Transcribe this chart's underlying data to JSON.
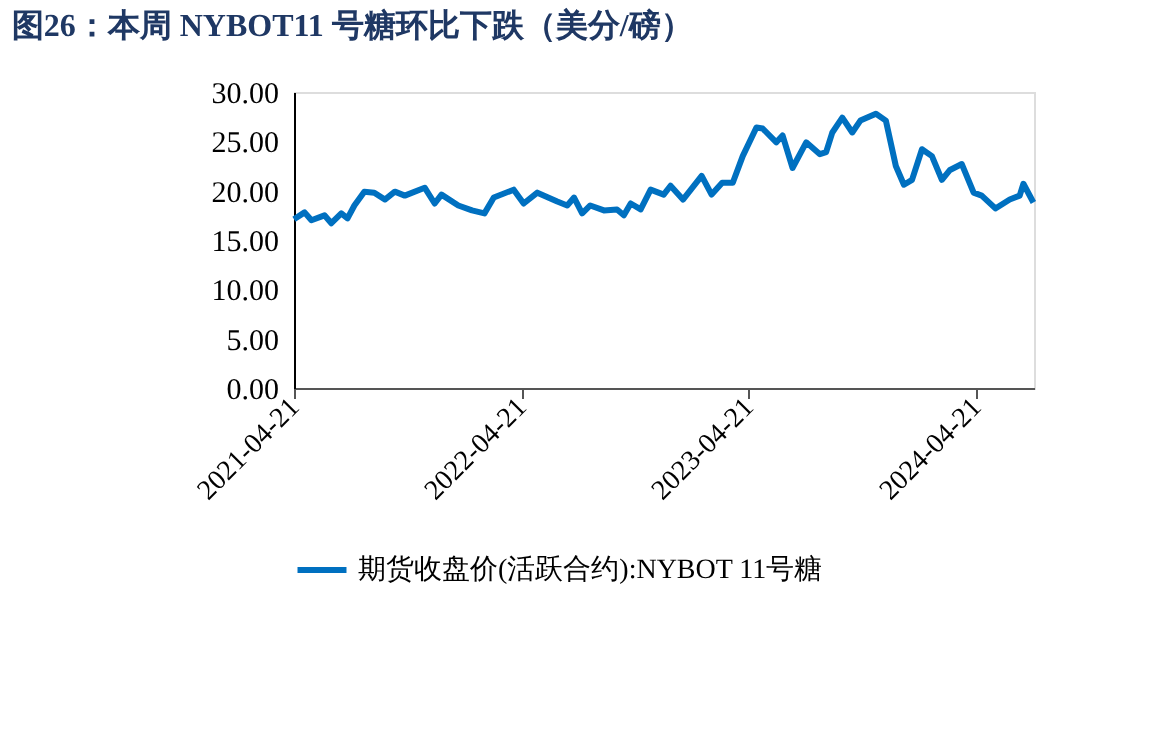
{
  "chart_data": {
    "type": "line",
    "title": "图26：本周 NYBOT11 号糖环比下跌（美分/磅）",
    "x": [
      "2021-04-21",
      "2021-05-08",
      "2021-05-19",
      "2021-06-09",
      "2021-06-20",
      "2021-07-06",
      "2021-07-16",
      "2021-07-27",
      "2021-08-12",
      "2021-08-28",
      "2021-09-14",
      "2021-09-30",
      "2021-10-16",
      "2021-11-17",
      "2021-12-03",
      "2021-12-14",
      "2022-01-10",
      "2022-02-01",
      "2022-02-21",
      "2022-03-08",
      "2022-04-09",
      "2022-04-25",
      "2022-05-17",
      "2022-06-18",
      "2022-07-04",
      "2022-07-15",
      "2022-07-28",
      "2022-08-10",
      "2022-09-01",
      "2022-09-22",
      "2022-10-03",
      "2022-10-14",
      "2022-10-30",
      "2022-11-15",
      "2022-12-06",
      "2022-12-17",
      "2023-01-06",
      "2023-02-05",
      "2023-02-21",
      "2023-03-10",
      "2023-03-27",
      "2023-04-12",
      "2023-05-04",
      "2023-05-14",
      "2023-06-05",
      "2023-06-15",
      "2023-07-01",
      "2023-07-23",
      "2023-08-14",
      "2023-08-24",
      "2023-09-03",
      "2023-09-19",
      "2023-10-05",
      "2023-10-18",
      "2023-11-12",
      "2023-11-28",
      "2023-12-14",
      "2023-12-27",
      "2024-01-09",
      "2024-01-25",
      "2024-02-10",
      "2024-02-26",
      "2024-03-10",
      "2024-03-29",
      "2024-04-17",
      "2024-04-30",
      "2024-05-22",
      "2024-06-14",
      "2024-06-30",
      "2024-07-06",
      "2024-07-22"
    ],
    "series": [
      {
        "name": "期货收盘价(活跃合约):NYBOT 11号糖",
        "color": "#0070c0",
        "values": [
          17.1,
          17.8,
          17.0,
          17.5,
          16.7,
          17.7,
          17.2,
          18.5,
          19.9,
          19.8,
          19.1,
          19.9,
          19.5,
          20.3,
          18.7,
          19.6,
          18.5,
          18.0,
          17.7,
          19.3,
          20.1,
          18.7,
          19.8,
          18.9,
          18.5,
          19.3,
          17.7,
          18.5,
          18.0,
          18.1,
          17.5,
          18.7,
          18.1,
          20.1,
          19.6,
          20.5,
          19.1,
          21.5,
          19.6,
          20.8,
          20.8,
          23.5,
          26.4,
          26.3,
          24.9,
          25.6,
          22.3,
          24.9,
          23.7,
          23.9,
          25.9,
          27.4,
          25.9,
          27.1,
          27.8,
          27.1,
          22.5,
          20.6,
          21.1,
          24.2,
          23.5,
          21.1,
          22.1,
          22.7,
          19.8,
          19.5,
          18.2,
          19.1,
          19.5,
          20.7,
          18.8
        ]
      }
    ],
    "xlim": [
      "2021-04-21",
      "2024-07-23"
    ],
    "xticks": [
      "2021-04-21",
      "2022-04-21",
      "2023-04-21",
      "2024-04-21"
    ],
    "ylim": [
      0,
      30
    ],
    "yticks": [
      {
        "value": 0,
        "label": "0.00"
      },
      {
        "value": 5,
        "label": "5.00"
      },
      {
        "value": 10,
        "label": "10.00"
      },
      {
        "value": 15,
        "label": "15.00"
      },
      {
        "value": 20,
        "label": "20.00"
      },
      {
        "value": 25,
        "label": "25.00"
      },
      {
        "value": 30,
        "label": "30.00"
      }
    ],
    "legend": "bottom",
    "grid": false,
    "marker": "none",
    "line_style": "solid"
  }
}
